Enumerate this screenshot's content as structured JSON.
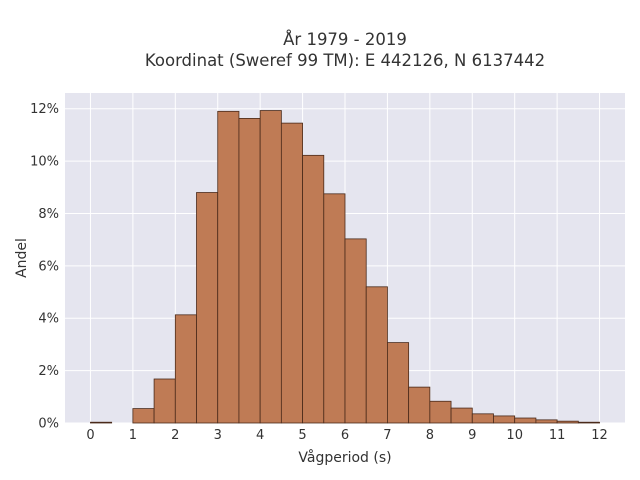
{
  "chart_data": {
    "type": "bar",
    "title_lines": [
      "År 1979 - 2019",
      "Koordinat (Sweref 99 TM): E 442126, N 6137442"
    ],
    "xlabel": "Vågperiod (s)",
    "ylabel": "Andel",
    "x_ticks": [
      0,
      1,
      2,
      3,
      4,
      5,
      6,
      7,
      8,
      9,
      10,
      11,
      12
    ],
    "y_ticks": [
      0,
      2,
      4,
      6,
      8,
      10,
      12
    ],
    "y_tick_suffix": "%",
    "xlim": [
      -0.6,
      12.6
    ],
    "ylim": [
      0,
      12.6
    ],
    "bin_width": 0.5,
    "bins": [
      {
        "x0": 0.0,
        "x1": 0.5,
        "value": 0.03
      },
      {
        "x0": 0.5,
        "x1": 1.0,
        "value": 0.0
      },
      {
        "x0": 1.0,
        "x1": 1.5,
        "value": 0.55
      },
      {
        "x0": 1.5,
        "x1": 2.0,
        "value": 1.68
      },
      {
        "x0": 2.0,
        "x1": 2.5,
        "value": 4.13
      },
      {
        "x0": 2.5,
        "x1": 3.0,
        "value": 8.8
      },
      {
        "x0": 3.0,
        "x1": 3.5,
        "value": 11.9
      },
      {
        "x0": 3.5,
        "x1": 4.0,
        "value": 11.63
      },
      {
        "x0": 4.0,
        "x1": 4.5,
        "value": 11.93
      },
      {
        "x0": 4.5,
        "x1": 5.0,
        "value": 11.45
      },
      {
        "x0": 5.0,
        "x1": 5.5,
        "value": 10.22
      },
      {
        "x0": 5.5,
        "x1": 6.0,
        "value": 8.75
      },
      {
        "x0": 6.0,
        "x1": 6.5,
        "value": 7.03
      },
      {
        "x0": 6.5,
        "x1": 7.0,
        "value": 5.2
      },
      {
        "x0": 7.0,
        "x1": 7.5,
        "value": 3.07
      },
      {
        "x0": 7.5,
        "x1": 8.0,
        "value": 1.37
      },
      {
        "x0": 8.0,
        "x1": 8.5,
        "value": 0.83
      },
      {
        "x0": 8.5,
        "x1": 9.0,
        "value": 0.57
      },
      {
        "x0": 9.0,
        "x1": 9.5,
        "value": 0.35
      },
      {
        "x0": 9.5,
        "x1": 10.0,
        "value": 0.27
      },
      {
        "x0": 10.0,
        "x1": 10.5,
        "value": 0.19
      },
      {
        "x0": 10.5,
        "x1": 11.0,
        "value": 0.12
      },
      {
        "x0": 11.0,
        "x1": 11.5,
        "value": 0.07
      },
      {
        "x0": 11.5,
        "x1": 12.0,
        "value": 0.03
      }
    ],
    "grid": true,
    "colors": {
      "bar_fill": "#bf7b55",
      "bar_edge": "#4a2a1a",
      "plot_background": "#e5e5ef",
      "grid": "#ffffff"
    }
  }
}
